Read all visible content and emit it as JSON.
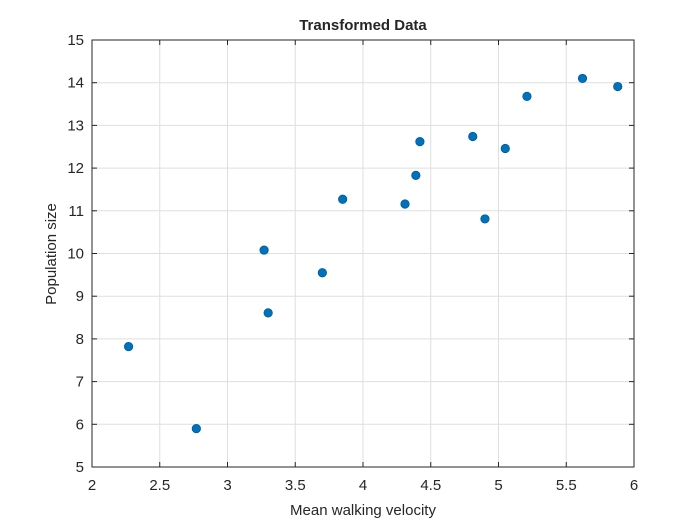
{
  "chart_data": {
    "type": "scatter",
    "title": "Transformed Data",
    "xlabel": "Mean walking velocity",
    "ylabel": "Population size",
    "xlim": [
      2,
      6
    ],
    "ylim": [
      5,
      15
    ],
    "xticks": [
      2,
      2.5,
      3,
      3.5,
      4,
      4.5,
      5,
      5.5,
      6
    ],
    "yticks": [
      5,
      6,
      7,
      8,
      9,
      10,
      11,
      12,
      13,
      14,
      15
    ],
    "xtick_labels": [
      "2",
      "2.5",
      "3",
      "3.5",
      "4",
      "4.5",
      "5",
      "5.5",
      "6"
    ],
    "ytick_labels": [
      "5",
      "6",
      "7",
      "8",
      "9",
      "10",
      "11",
      "12",
      "13",
      "14",
      "15"
    ],
    "grid": true,
    "series": [
      {
        "color": "#0072BD",
        "points": [
          {
            "x": 2.27,
            "y": 7.82
          },
          {
            "x": 2.77,
            "y": 5.9
          },
          {
            "x": 3.27,
            "y": 10.08
          },
          {
            "x": 3.3,
            "y": 8.61
          },
          {
            "x": 3.7,
            "y": 9.55
          },
          {
            "x": 3.85,
            "y": 11.27
          },
          {
            "x": 4.31,
            "y": 11.16
          },
          {
            "x": 4.39,
            "y": 11.83
          },
          {
            "x": 4.42,
            "y": 12.62
          },
          {
            "x": 4.81,
            "y": 12.74
          },
          {
            "x": 4.9,
            "y": 10.81
          },
          {
            "x": 5.05,
            "y": 12.46
          },
          {
            "x": 5.21,
            "y": 13.68
          },
          {
            "x": 5.62,
            "y": 14.1
          },
          {
            "x": 5.88,
            "y": 13.91
          }
        ]
      }
    ]
  }
}
